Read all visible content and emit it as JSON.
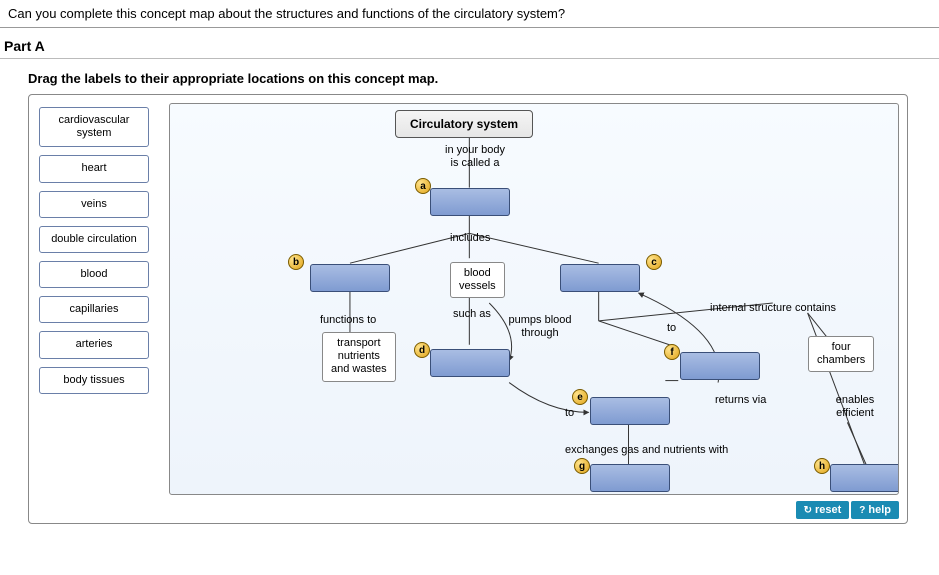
{
  "question": "Can you complete this concept map about the structures and functions of the circulatory system?",
  "part_label": "Part A",
  "instruction": "Drag the labels to their appropriate locations on this concept map.",
  "bank": {
    "items": [
      "cardiovascular system",
      "heart",
      "veins",
      "double circulation",
      "blood",
      "capillaries",
      "arteries",
      "body tissues"
    ]
  },
  "map": {
    "root": "Circulatory system",
    "edges": {
      "e1": "in your body\nis called a",
      "e2": "includes",
      "e3": "functions to",
      "e4": "such as",
      "e5": "pumps blood\nthrough",
      "e6": "to",
      "e7": "internal structure contains",
      "e8": "to",
      "e9": "returns via",
      "e10": "exchanges gas and nutrients with",
      "e11": "enables\nefficient"
    },
    "text_nodes": {
      "t1": "blood\nvessels",
      "t2": "transport\nnutrients\nand wastes",
      "t3": "four\nchambers"
    },
    "markers": [
      "a",
      "b",
      "c",
      "d",
      "e",
      "f",
      "g",
      "h"
    ]
  },
  "footer": {
    "reset": "reset",
    "help": "help"
  },
  "colors": {
    "slot_fill_top": "#a9bde3",
    "slot_fill_bot": "#7f9bd1",
    "line": "#333333",
    "canvas_bg": "#f0f6fd"
  }
}
